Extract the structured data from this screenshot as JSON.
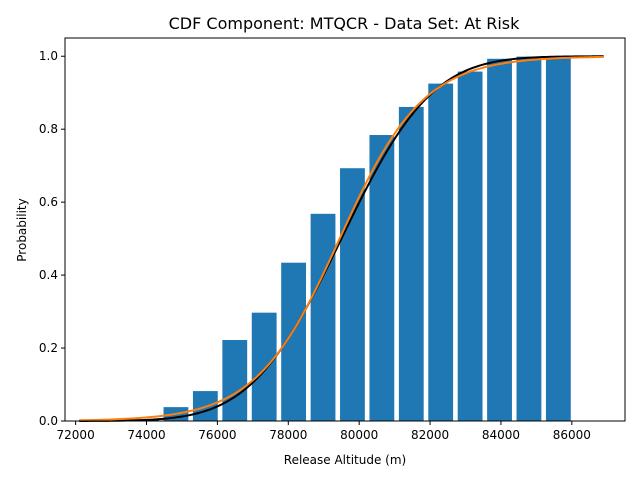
{
  "chart_data": {
    "type": "bar",
    "title": "CDF Component: MTQCR - Data Set: At Risk",
    "xlabel": "Release Altitude (m)",
    "ylabel": "Probability",
    "xlim": [
      71700,
      87500
    ],
    "ylim": [
      0,
      1.05
    ],
    "x_ticks": [
      72000,
      74000,
      76000,
      78000,
      80000,
      82000,
      84000,
      86000
    ],
    "y_ticks": [
      0.0,
      0.2,
      0.4,
      0.6,
      0.8,
      1.0
    ],
    "grid": false,
    "bar_width": 700,
    "series": [
      {
        "type": "bar",
        "color": "#1f77b4",
        "x": [
          74000,
          74830,
          75660,
          76490,
          77320,
          78150,
          78980,
          79810,
          80640,
          81470,
          82300,
          83130,
          83960,
          84790,
          85620
        ],
        "values": [
          0.005,
          0.038,
          0.082,
          0.222,
          0.297,
          0.434,
          0.568,
          0.693,
          0.784,
          0.861,
          0.925,
          0.958,
          0.993,
          0.999,
          0.999
        ]
      },
      {
        "type": "line",
        "color": "#000000",
        "curve": "normal_cdf",
        "mean": 79500,
        "sd": 2000,
        "x_range": [
          72100,
          86900
        ]
      },
      {
        "type": "line",
        "color": "#ff7f0e",
        "curve": "logistic_cdf",
        "mean": 79450,
        "scale": 1180,
        "x_range": [
          72100,
          86900
        ]
      }
    ]
  }
}
